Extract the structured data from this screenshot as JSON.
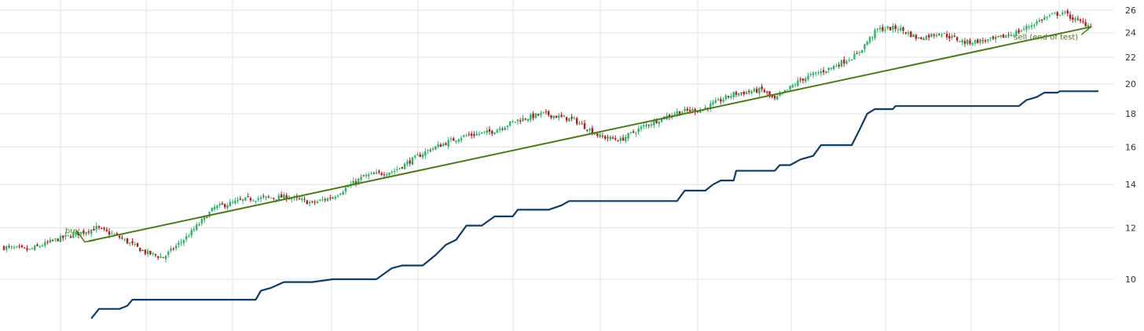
{
  "chart_data": {
    "type": "candlestick",
    "y_scale": "log",
    "ylim": [
      9.0,
      27.0
    ],
    "y_ticks": [
      {
        "value": 10,
        "label": "10"
      },
      {
        "value": 12,
        "label": "12"
      },
      {
        "value": 14,
        "label": "14"
      },
      {
        "value": 16,
        "label": "16"
      },
      {
        "value": 18,
        "label": "18"
      },
      {
        "value": 20,
        "label": "20"
      },
      {
        "value": 22,
        "label": "22"
      },
      {
        "value": 24,
        "label": "24"
      },
      {
        "value": 26,
        "label": "26"
      }
    ],
    "y_axis_position": "right",
    "grid": true,
    "colors": {
      "up": "#2db36b",
      "down": "#b21e1e",
      "trade_line": "#4c7a1c",
      "stop_line": "#0f3d66",
      "grid": "#e3e3e3"
    },
    "price_anchors": [
      {
        "bar": 0,
        "close": 11.2
      },
      {
        "bar": 10,
        "close": 11.1
      },
      {
        "bar": 20,
        "close": 11.5
      },
      {
        "bar": 30,
        "close": 11.8
      },
      {
        "bar": 36,
        "close": 12.0
      },
      {
        "bar": 45,
        "close": 11.6
      },
      {
        "bar": 55,
        "close": 11.0
      },
      {
        "bar": 62,
        "close": 10.8
      },
      {
        "bar": 72,
        "close": 11.7
      },
      {
        "bar": 82,
        "close": 12.9
      },
      {
        "bar": 95,
        "close": 13.3
      },
      {
        "bar": 110,
        "close": 13.4
      },
      {
        "bar": 120,
        "close": 13.1
      },
      {
        "bar": 128,
        "close": 13.4
      },
      {
        "bar": 140,
        "close": 14.4
      },
      {
        "bar": 152,
        "close": 14.7
      },
      {
        "bar": 165,
        "close": 15.8
      },
      {
        "bar": 178,
        "close": 16.6
      },
      {
        "bar": 190,
        "close": 16.9
      },
      {
        "bar": 200,
        "close": 17.6
      },
      {
        "bar": 210,
        "close": 18.0
      },
      {
        "bar": 222,
        "close": 17.6
      },
      {
        "bar": 232,
        "close": 16.6
      },
      {
        "bar": 240,
        "close": 16.4
      },
      {
        "bar": 250,
        "close": 17.3
      },
      {
        "bar": 262,
        "close": 18.1
      },
      {
        "bar": 272,
        "close": 18.3
      },
      {
        "bar": 284,
        "close": 19.3
      },
      {
        "bar": 295,
        "close": 19.6
      },
      {
        "bar": 300,
        "close": 18.9
      },
      {
        "bar": 310,
        "close": 20.3
      },
      {
        "bar": 322,
        "close": 21.2
      },
      {
        "bar": 332,
        "close": 22.2
      },
      {
        "bar": 340,
        "close": 24.3
      },
      {
        "bar": 348,
        "close": 24.4
      },
      {
        "bar": 356,
        "close": 23.5
      },
      {
        "bar": 364,
        "close": 24.0
      },
      {
        "bar": 374,
        "close": 23.2
      },
      {
        "bar": 385,
        "close": 23.4
      },
      {
        "bar": 395,
        "close": 24.1
      },
      {
        "bar": 405,
        "close": 25.3
      },
      {
        "bar": 412,
        "close": 25.8
      },
      {
        "bar": 418,
        "close": 25.0
      },
      {
        "bar": 423,
        "close": 24.6
      }
    ],
    "stop_line_points": [
      [
        34,
        8.7
      ],
      [
        37,
        9.0
      ],
      [
        45,
        9.0
      ],
      [
        48,
        9.1
      ],
      [
        50,
        9.3
      ],
      [
        98,
        9.3
      ],
      [
        100,
        9.6
      ],
      [
        104,
        9.7
      ],
      [
        109,
        9.9
      ],
      [
        120,
        9.9
      ],
      [
        128,
        10.0
      ],
      [
        145,
        10.0
      ],
      [
        151,
        10.4
      ],
      [
        155,
        10.5
      ],
      [
        163,
        10.5
      ],
      [
        168,
        10.9
      ],
      [
        172,
        11.3
      ],
      [
        176,
        11.5
      ],
      [
        180,
        12.1
      ],
      [
        186,
        12.1
      ],
      [
        191,
        12.5
      ],
      [
        198,
        12.5
      ],
      [
        200,
        12.8
      ],
      [
        212,
        12.8
      ],
      [
        217,
        13.0
      ],
      [
        220,
        13.2
      ],
      [
        262,
        13.2
      ],
      [
        265,
        13.7
      ],
      [
        273,
        13.7
      ],
      [
        276,
        14.0
      ],
      [
        279,
        14.2
      ],
      [
        284,
        14.2
      ],
      [
        285,
        14.7
      ],
      [
        300,
        14.7
      ],
      [
        302,
        15.0
      ],
      [
        306,
        15.0
      ],
      [
        310,
        15.3
      ],
      [
        315,
        15.5
      ],
      [
        318,
        16.1
      ],
      [
        330,
        16.1
      ],
      [
        333,
        17.0
      ],
      [
        336,
        18.0
      ],
      [
        339,
        18.3
      ],
      [
        346,
        18.3
      ],
      [
        347,
        18.5
      ],
      [
        395,
        18.5
      ],
      [
        398,
        18.9
      ],
      [
        402,
        19.1
      ],
      [
        405,
        19.4
      ],
      [
        410,
        19.4
      ],
      [
        411,
        19.5
      ],
      [
        426,
        19.5
      ]
    ],
    "annotations": [
      {
        "label": "buy",
        "bar": 33,
        "price": 11.45,
        "anchor": "start"
      },
      {
        "label": "sell (end of test)",
        "bar": 423,
        "price": 24.5,
        "anchor": "end"
      }
    ]
  }
}
